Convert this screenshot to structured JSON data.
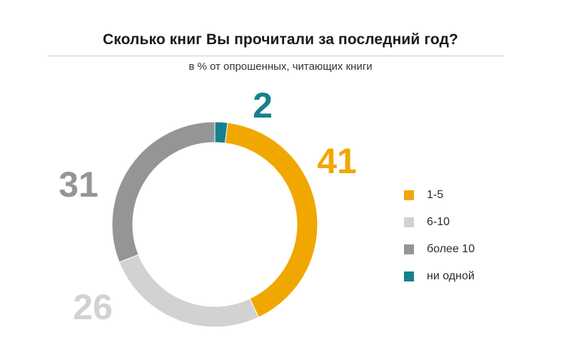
{
  "chart_data": {
    "type": "pie",
    "title": "Сколько книг Вы прочитали за последний год?",
    "subtitle": "в % от опрошенных, читающих книги",
    "categories": [
      "1-5",
      "6-10",
      "более 10",
      "ни одной"
    ],
    "values": [
      41,
      26,
      31,
      2
    ],
    "value_labels": [
      "41",
      "26",
      "31",
      "2"
    ],
    "colors": [
      "#f0a800",
      "#d2d2d0",
      "#939597",
      "#16808f"
    ],
    "start_order": [
      "ни одной",
      "1-5",
      "6-10",
      "более 10"
    ],
    "style": "donut",
    "legend_placement": "right"
  }
}
